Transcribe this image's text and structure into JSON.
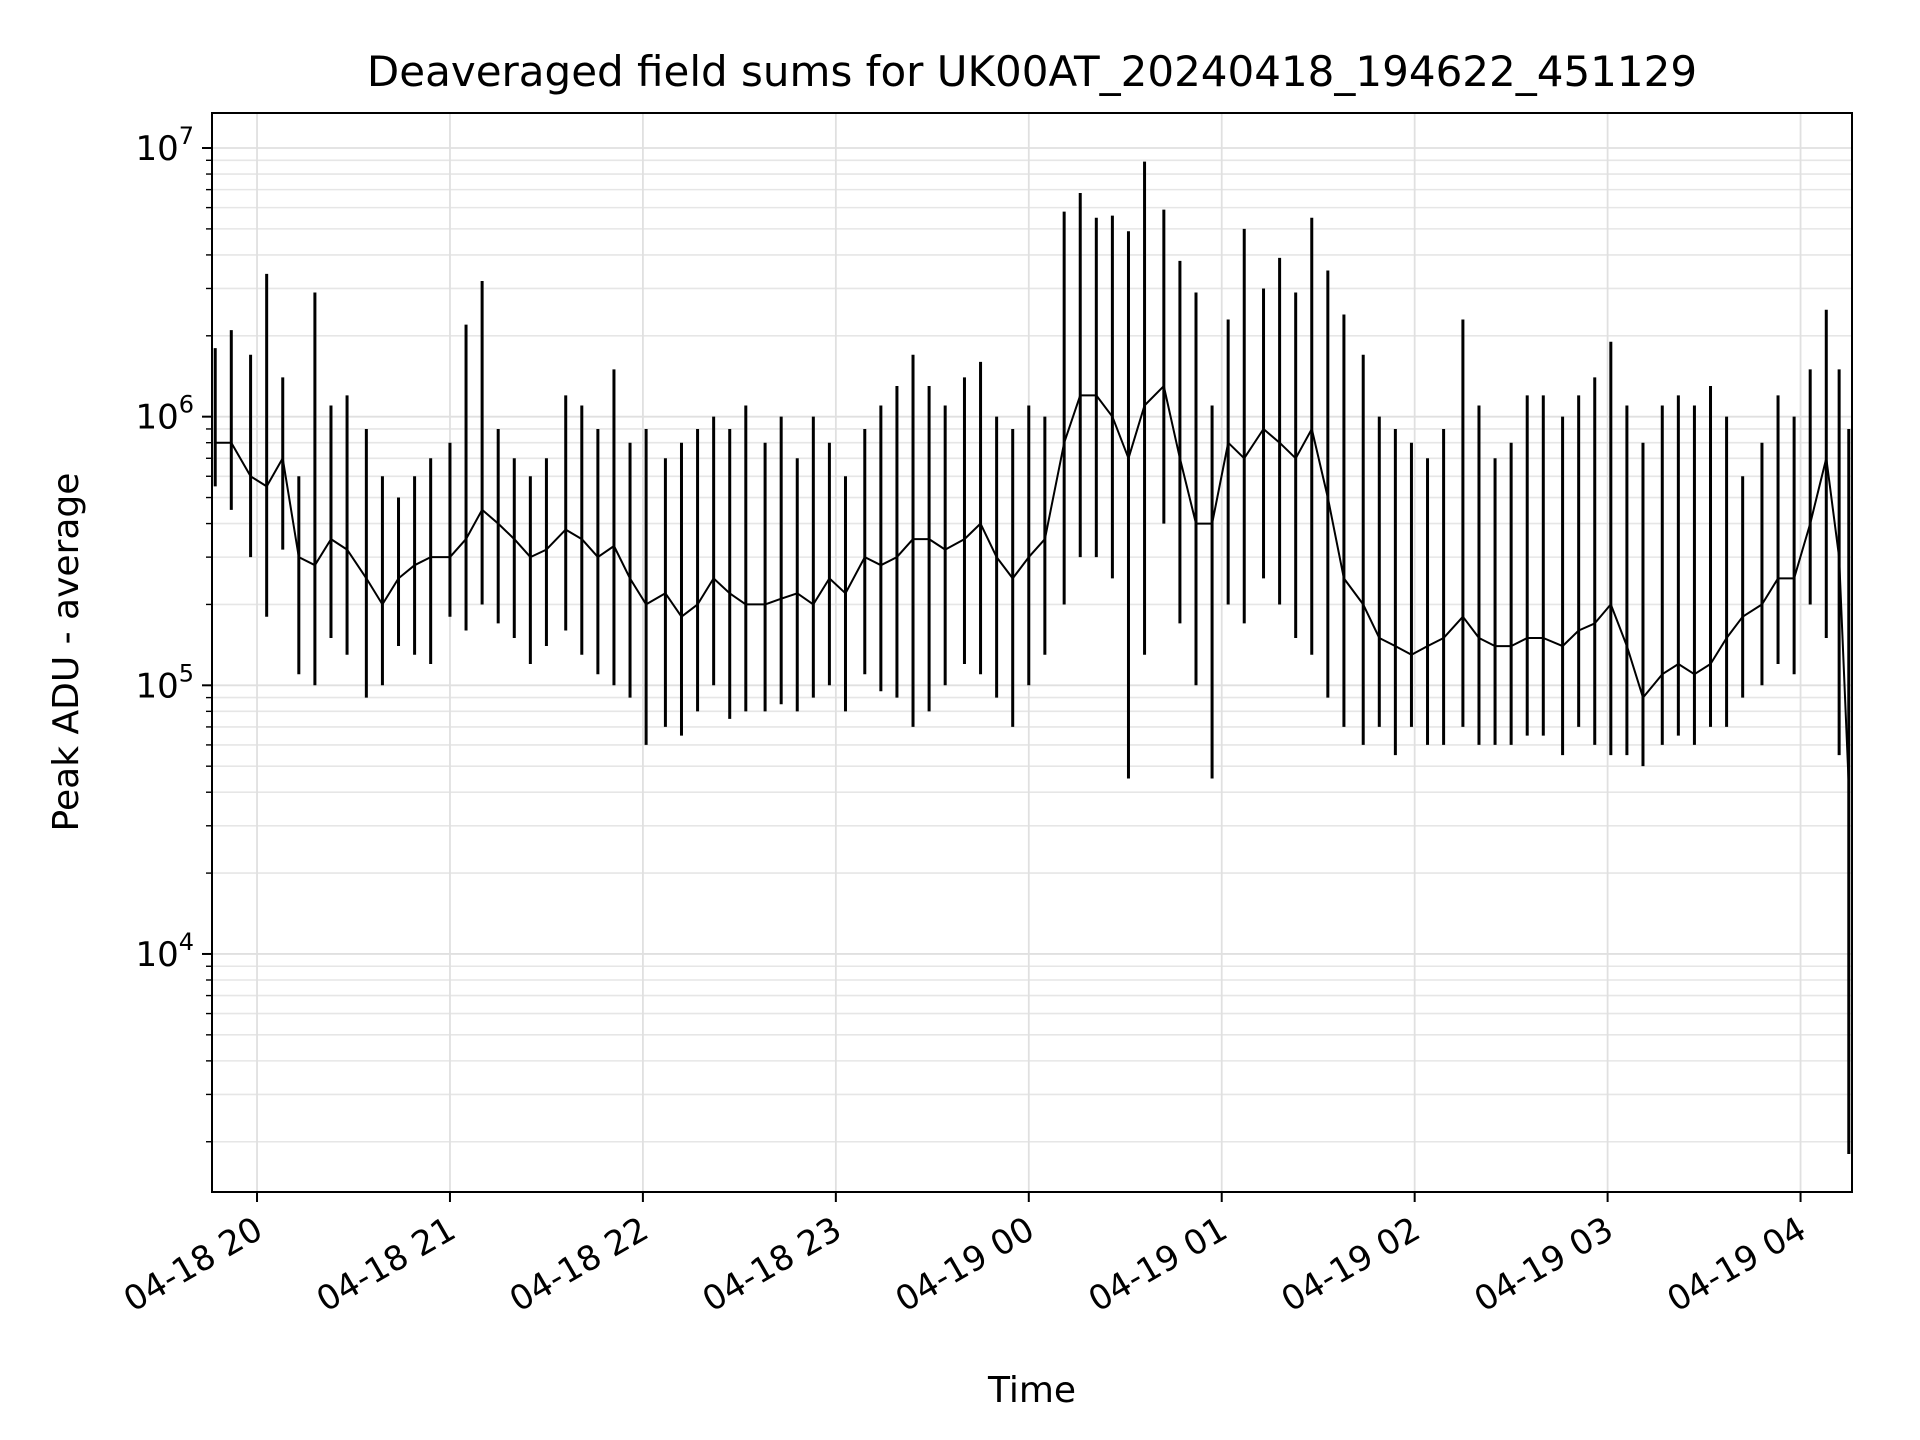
{
  "chart_data": {
    "type": "line",
    "title": "Deaveraged field sums for UK00AT_20240418_194622_451129",
    "xlabel": "Time",
    "ylabel": "Peak ADU - average",
    "yscale": "log",
    "grid": true,
    "xlim": [
      "2024-04-18 19:46",
      "2024-04-19 04:16"
    ],
    "ylim": [
      1300,
      13500000
    ],
    "x_ticks": [
      {
        "value": "2024-04-18 20:00",
        "label": "04-18 20"
      },
      {
        "value": "2024-04-18 21:00",
        "label": "04-18 21"
      },
      {
        "value": "2024-04-18 22:00",
        "label": "04-18 22"
      },
      {
        "value": "2024-04-18 23:00",
        "label": "04-18 23"
      },
      {
        "value": "2024-04-19 00:00",
        "label": "04-19 00"
      },
      {
        "value": "2024-04-19 01:00",
        "label": "04-19 01"
      },
      {
        "value": "2024-04-19 02:00",
        "label": "04-19 02"
      },
      {
        "value": "2024-04-19 03:00",
        "label": "04-19 03"
      },
      {
        "value": "2024-04-19 04:00",
        "label": "04-19 04"
      }
    ],
    "y_ticks": [
      {
        "value": 10000,
        "base": "10",
        "exp": "4"
      },
      {
        "value": 100000,
        "base": "10",
        "exp": "5"
      },
      {
        "value": 1000000,
        "base": "10",
        "exp": "6"
      },
      {
        "value": 10000000,
        "base": "10",
        "exp": "7"
      }
    ],
    "series": [
      {
        "color": "#000000",
        "x": [
          "2024-04-18 19:47",
          "2024-04-18 19:52",
          "2024-04-18 19:58",
          "2024-04-18 20:03",
          "2024-04-18 20:08",
          "2024-04-18 20:13",
          "2024-04-18 20:18",
          "2024-04-18 20:23",
          "2024-04-18 20:28",
          "2024-04-18 20:34",
          "2024-04-18 20:39",
          "2024-04-18 20:44",
          "2024-04-18 20:49",
          "2024-04-18 20:54",
          "2024-04-18 21:00",
          "2024-04-18 21:05",
          "2024-04-18 21:10",
          "2024-04-18 21:15",
          "2024-04-18 21:20",
          "2024-04-18 21:25",
          "2024-04-18 21:30",
          "2024-04-18 21:36",
          "2024-04-18 21:41",
          "2024-04-18 21:46",
          "2024-04-18 21:51",
          "2024-04-18 21:56",
          "2024-04-18 22:01",
          "2024-04-18 22:07",
          "2024-04-18 22:12",
          "2024-04-18 22:17",
          "2024-04-18 22:22",
          "2024-04-18 22:27",
          "2024-04-18 22:32",
          "2024-04-18 22:38",
          "2024-04-18 22:43",
          "2024-04-18 22:48",
          "2024-04-18 22:53",
          "2024-04-18 22:58",
          "2024-04-18 23:03",
          "2024-04-18 23:09",
          "2024-04-18 23:14",
          "2024-04-18 23:19",
          "2024-04-18 23:24",
          "2024-04-18 23:29",
          "2024-04-18 23:34",
          "2024-04-18 23:40",
          "2024-04-18 23:45",
          "2024-04-18 23:50",
          "2024-04-18 23:55",
          "2024-04-19 00:00",
          "2024-04-19 00:05",
          "2024-04-19 00:11",
          "2024-04-19 00:16",
          "2024-04-19 00:21",
          "2024-04-19 00:26",
          "2024-04-19 00:31",
          "2024-04-19 00:36",
          "2024-04-19 00:42",
          "2024-04-19 00:47",
          "2024-04-19 00:52",
          "2024-04-19 00:57",
          "2024-04-19 01:02",
          "2024-04-19 01:07",
          "2024-04-19 01:13",
          "2024-04-19 01:18",
          "2024-04-19 01:23",
          "2024-04-19 01:28",
          "2024-04-19 01:33",
          "2024-04-19 01:38",
          "2024-04-19 01:44",
          "2024-04-19 01:49",
          "2024-04-19 01:54",
          "2024-04-19 01:59",
          "2024-04-19 02:04",
          "2024-04-19 02:09",
          "2024-04-19 02:15",
          "2024-04-19 02:20",
          "2024-04-19 02:25",
          "2024-04-19 02:30",
          "2024-04-19 02:35",
          "2024-04-19 02:40",
          "2024-04-19 02:46",
          "2024-04-19 02:51",
          "2024-04-19 02:56",
          "2024-04-19 03:01",
          "2024-04-19 03:06",
          "2024-04-19 03:11",
          "2024-04-19 03:17",
          "2024-04-19 03:22",
          "2024-04-19 03:27",
          "2024-04-19 03:32",
          "2024-04-19 03:37",
          "2024-04-19 03:42",
          "2024-04-19 03:48",
          "2024-04-19 03:53",
          "2024-04-19 03:58",
          "2024-04-19 04:03",
          "2024-04-19 04:08",
          "2024-04-19 04:12",
          "2024-04-19 04:15"
        ],
        "high": [
          1800000,
          2100000,
          1700000,
          3400000,
          1400000,
          600000,
          2900000,
          1100000,
          1200000,
          900000,
          600000,
          500000,
          600000,
          700000,
          800000,
          2200000,
          3200000,
          900000,
          700000,
          600000,
          700000,
          1200000,
          1100000,
          900000,
          1500000,
          800000,
          900000,
          700000,
          800000,
          900000,
          1000000,
          900000,
          1100000,
          800000,
          1000000,
          700000,
          1000000,
          800000,
          600000,
          900000,
          1100000,
          1300000,
          1700000,
          1300000,
          1100000,
          1400000,
          1600000,
          1000000,
          900000,
          1100000,
          1000000,
          5800000,
          6800000,
          5500000,
          5600000,
          4900000,
          8900000,
          5900000,
          3800000,
          2900000,
          1100000,
          2300000,
          5000000,
          3000000,
          3900000,
          2900000,
          5500000,
          3500000,
          2400000,
          1700000,
          1000000,
          900000,
          800000,
          700000,
          900000,
          2300000,
          1100000,
          700000,
          800000,
          1200000,
          1200000,
          1000000,
          1200000,
          1400000,
          1900000,
          1100000,
          800000,
          1100000,
          1200000,
          1100000,
          1300000,
          1000000,
          600000,
          800000,
          1200000,
          1000000,
          1500000,
          2500000,
          1500000,
          900000
        ],
        "low": [
          550000,
          450000,
          300000,
          180000,
          320000,
          110000,
          100000,
          150000,
          130000,
          90000,
          100000,
          140000,
          130000,
          120000,
          180000,
          160000,
          200000,
          170000,
          150000,
          120000,
          140000,
          160000,
          130000,
          110000,
          100000,
          90000,
          60000,
          70000,
          65000,
          80000,
          100000,
          75000,
          80000,
          80000,
          85000,
          80000,
          90000,
          100000,
          80000,
          110000,
          95000,
          90000,
          70000,
          80000,
          100000,
          120000,
          110000,
          90000,
          70000,
          100000,
          130000,
          200000,
          300000,
          300000,
          250000,
          45000,
          130000,
          400000,
          170000,
          100000,
          45000,
          200000,
          170000,
          250000,
          200000,
          150000,
          130000,
          90000,
          70000,
          60000,
          70000,
          55000,
          70000,
          60000,
          60000,
          70000,
          60000,
          60000,
          60000,
          65000,
          65000,
          55000,
          70000,
          60000,
          55000,
          55000,
          50000,
          60000,
          65000,
          60000,
          70000,
          70000,
          90000,
          100000,
          120000,
          110000,
          200000,
          150000,
          55000,
          1800
        ],
        "value": [
          800000,
          800000,
          600000,
          550000,
          700000,
          300000,
          280000,
          350000,
          320000,
          250000,
          200000,
          250000,
          280000,
          300000,
          300000,
          350000,
          450000,
          400000,
          350000,
          300000,
          320000,
          380000,
          350000,
          300000,
          330000,
          250000,
          200000,
          220000,
          180000,
          200000,
          250000,
          220000,
          200000,
          200000,
          210000,
          220000,
          200000,
          250000,
          220000,
          300000,
          280000,
          300000,
          350000,
          350000,
          320000,
          350000,
          400000,
          300000,
          250000,
          300000,
          350000,
          800000,
          1200000,
          1200000,
          1000000,
          700000,
          1100000,
          1300000,
          700000,
          400000,
          400000,
          800000,
          700000,
          900000,
          800000,
          700000,
          900000,
          500000,
          250000,
          200000,
          150000,
          140000,
          130000,
          140000,
          150000,
          180000,
          150000,
          140000,
          140000,
          150000,
          150000,
          140000,
          160000,
          170000,
          200000,
          140000,
          90000,
          110000,
          120000,
          110000,
          120000,
          150000,
          180000,
          200000,
          250000,
          250000,
          400000,
          700000,
          300000,
          42000
        ]
      }
    ]
  }
}
